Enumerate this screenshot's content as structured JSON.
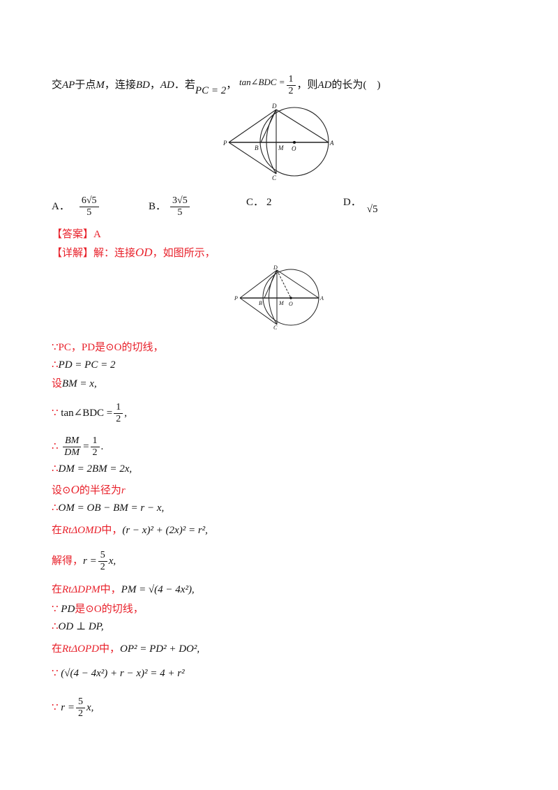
{
  "question": {
    "prefix": "交",
    "ap": "AP",
    "t1": "于点",
    "m": "M",
    "t2": "，连接",
    "bd": "BD",
    "t3": "，",
    "ad": "AD",
    "t4": "．若",
    "pc2": "PC = 2",
    "t5": "，",
    "tan_lhs": "tan∠BDC =",
    "frac_num": "1",
    "frac_den": "2",
    "t6": "，则",
    "ad2": "AD",
    "t7": "的长为(　)"
  },
  "figure1": {
    "labels": {
      "D": "D",
      "P": "P",
      "B": "B",
      "M": "M",
      "O": "O",
      "A": "A",
      "C": "C"
    }
  },
  "options": {
    "a_label": "A．",
    "a_num": "6√5",
    "a_den": "5",
    "b_label": "B．",
    "b_num": "3√5",
    "b_den": "5",
    "c_label": "C．",
    "c_val": "2",
    "d_label": "D．",
    "d_val": "√5"
  },
  "answer": {
    "label": "【答案】A"
  },
  "detail": {
    "label": "【详解】",
    "intro": "解：连接",
    "od": "OD",
    "intro2": "，如图所示，"
  },
  "figure2": {
    "labels": {
      "D": "D",
      "P": "P",
      "B": "B",
      "M": "M",
      "O": "O",
      "A": "A",
      "C": "C"
    }
  },
  "steps": {
    "s1": "∵PC，PD是⊙O的切线，",
    "s2_sym": "∴",
    "s2": "PD = PC = 2",
    "s3_sym": "设",
    "s3": "BM = x,",
    "s4_sym": "∵",
    "s4_lhs": "tan∠BDC =",
    "s4_num": "1",
    "s4_den": "2",
    "s4_end": ",",
    "s5_sym": "∴",
    "s5_num": "BM",
    "s5_den": "DM",
    "s5_eq": "=",
    "s5_rnum": "1",
    "s5_rden": "2",
    "s5_end": ".",
    "s6_sym": "∴",
    "s6": "DM = 2BM = 2x,",
    "s7_a": "设⊙",
    "s7_o": "O",
    "s7_b": "的半径为",
    "s7_r": "r",
    "s8_sym": "∴",
    "s8": "OM = OB − BM = r − x,",
    "s9_a": "在",
    "s9_tri": "RtΔOMD",
    "s9_b": "中，",
    "s9_eq": "(r − x)² + (2x)² = r²,",
    "s10_a": "解得，",
    "s10_lhs": "r =",
    "s10_num": "5",
    "s10_den": "2",
    "s10_end": "x,",
    "s11_a": "在",
    "s11_tri": "RtΔDPM",
    "s11_b": "中，",
    "s11_eq": "PM = √(4 − 4x²),",
    "s12_sym": "∵",
    "s12_a": "PD",
    "s12_b": "是⊙O的切线，",
    "s13_sym": "∴",
    "s13": "OD ⊥ DP,",
    "s14_a": "在",
    "s14_tri": "RtΔOPD",
    "s14_b": "中，",
    "s14_eq": "OP² = PD² + DO²,",
    "s15_sym": "∵",
    "s15": "(√(4 − 4x²) + r − x)² = 4 + r²",
    "s16_sym": "∵",
    "s16_lhs": "r =",
    "s16_num": "5",
    "s16_den": "2",
    "s16_end": "x,"
  }
}
